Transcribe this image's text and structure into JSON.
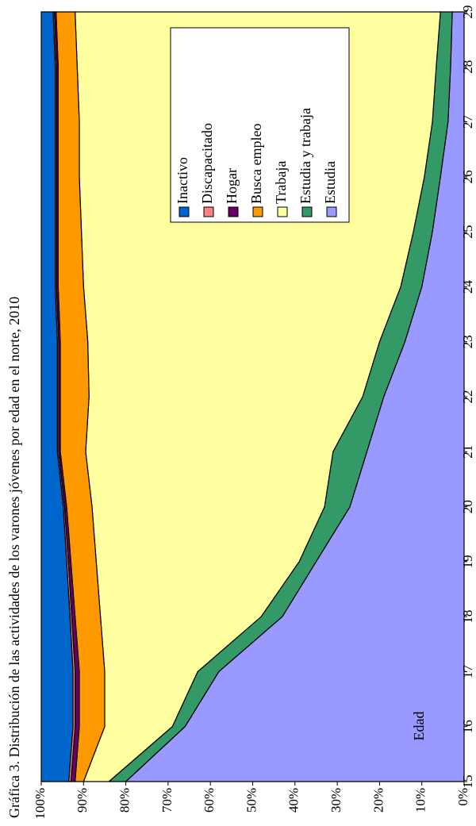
{
  "chart_data": {
    "type": "stacked_area",
    "title": "Gráfica 3. Distribución de las actividades de los varones jóvenes por edad en el norte, 2010",
    "xlabel": "Edad",
    "x": [
      15,
      16,
      17,
      18,
      19,
      20,
      21,
      22,
      23,
      24,
      25,
      26,
      27,
      28,
      29
    ],
    "xlim": [
      15,
      29
    ],
    "xticks": [
      15,
      16,
      17,
      18,
      19,
      20,
      21,
      22,
      23,
      24,
      25,
      26,
      27,
      28,
      29
    ],
    "ylim": [
      0,
      100
    ],
    "yticks": [
      {
        "value": 0,
        "label": "0%"
      },
      {
        "value": 10,
        "label": "10%"
      },
      {
        "value": 20,
        "label": "20%"
      },
      {
        "value": 30,
        "label": "30%"
      },
      {
        "value": 40,
        "label": "40%"
      },
      {
        "value": 50,
        "label": "50%"
      },
      {
        "value": 60,
        "label": "60%"
      },
      {
        "value": 70,
        "label": "70%"
      },
      {
        "value": 80,
        "label": "80%"
      },
      {
        "value": 90,
        "label": "90%"
      },
      {
        "value": 100,
        "label": "100%"
      }
    ],
    "series": [
      {
        "name": "Inactivo",
        "color": "#0066cc",
        "values": [
          6.5,
          7.5,
          7.5,
          6.8,
          6,
          5.2,
          3.8,
          3.8,
          3.8,
          3.3,
          3.3,
          3.3,
          3.3,
          3.3,
          2.8
        ]
      },
      {
        "name": "Discapacitado",
        "color": "#ff8080",
        "values": [
          0.5,
          0.5,
          0.5,
          0.4,
          0.4,
          0.3,
          0.3,
          0.3,
          0.3,
          0.3,
          0.3,
          0.3,
          0.3,
          0.3,
          0.3
        ]
      },
      {
        "name": "Hogar",
        "color": "#660066",
        "values": [
          1,
          1,
          1,
          0.8,
          0.6,
          0.5,
          0.4,
          0.4,
          0.4,
          0.4,
          0.4,
          0.4,
          0.4,
          0.4,
          0.4
        ]
      },
      {
        "name": "Busca empleo",
        "color": "#ff9900",
        "values": [
          2,
          6,
          6,
          6,
          6,
          6,
          6,
          6.8,
          6.5,
          6,
          5.5,
          5,
          5,
          4.5,
          4.5
        ]
      },
      {
        "name": "Trabaja",
        "color": "#ffffa0",
        "values": [
          6,
          16,
          22,
          38,
          48,
          55,
          58.5,
          64.7,
          69,
          75,
          78.5,
          81.6,
          83.5,
          84.9,
          86.4
        ]
      },
      {
        "name": "Estudia y trabaja",
        "color": "#339966",
        "values": [
          4,
          3,
          5,
          5,
          4,
          6,
          8,
          5,
          6,
          5,
          4.5,
          3.8,
          3.7,
          3.4,
          2.8
        ]
      },
      {
        "name": "Estudia",
        "color": "#9999ff",
        "values": [
          80,
          66,
          58,
          43,
          35,
          27,
          23,
          19,
          14,
          10,
          7.5,
          5.6,
          3.8,
          3.2,
          2.8
        ]
      }
    ]
  }
}
